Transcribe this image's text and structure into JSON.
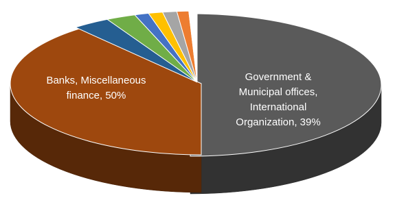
{
  "chart_data": {
    "type": "pie",
    "title": "",
    "style": "3d-exploded",
    "legend": "none",
    "slices": [
      {
        "label": "Banks, Miscellaneous finance",
        "value": 50,
        "label_lines": [
          "Banks, Miscellaneous",
          "finance, 50%"
        ],
        "color": "#5a5a5a",
        "labeled": true
      },
      {
        "label": "Government & Municipal offices, International Organization",
        "value": 39,
        "label_lines": [
          "Government &",
          "Municipal offices,",
          "International",
          "Organization, 39%"
        ],
        "color": "#9e480e",
        "labeled": true
      },
      {
        "label": "",
        "value": 3.2,
        "color": "#255e91",
        "labeled": false
      },
      {
        "label": "",
        "value": 2.5,
        "color": "#70ad47",
        "labeled": false
      },
      {
        "label": "",
        "value": 1.2,
        "color": "#4472c4",
        "labeled": false
      },
      {
        "label": "",
        "value": 1.2,
        "color": "#ffc000",
        "labeled": false
      },
      {
        "label": "",
        "value": 1.2,
        "color": "#a5a5a5",
        "labeled": false
      },
      {
        "label": "",
        "value": 1.0,
        "color": "#ed7d31",
        "labeled": false
      },
      {
        "label": "",
        "value": 0.7,
        "color": "#ffffff",
        "labeled": false
      }
    ]
  }
}
